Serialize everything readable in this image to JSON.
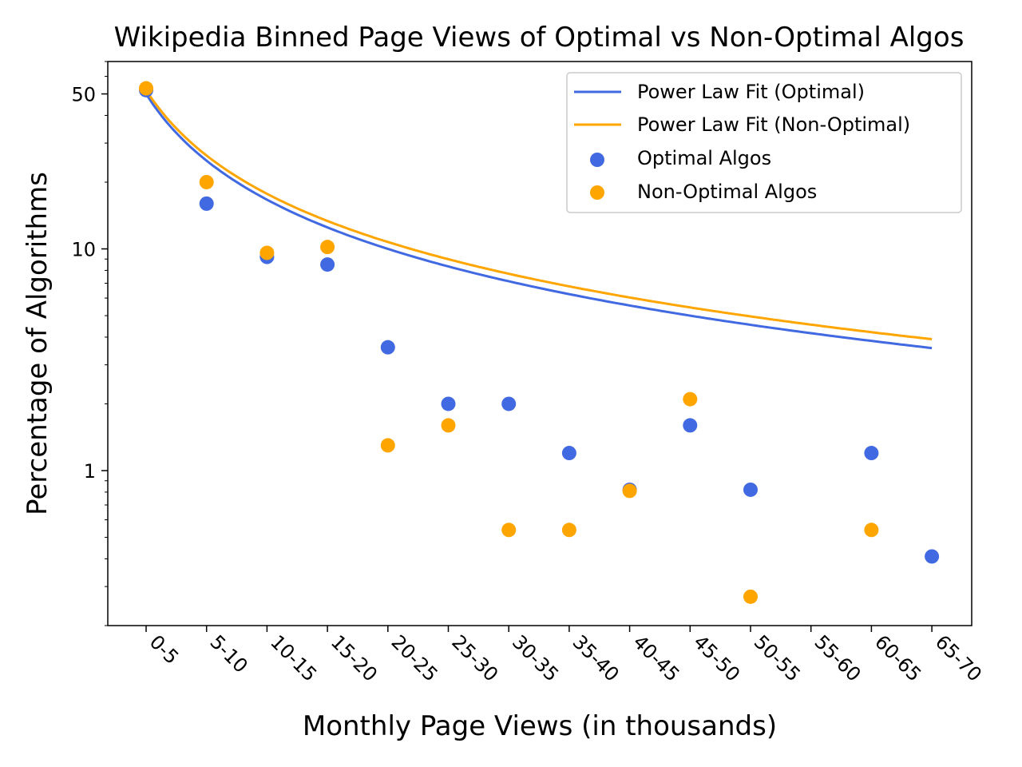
{
  "chart_data": {
    "type": "scatter",
    "title": "Wikipedia Binned Page Views of Optimal vs Non-Optimal Algos",
    "xlabel": "Monthly Page Views (in thousands)",
    "ylabel": "Percentage of Algorithms",
    "y_scale": "log",
    "ylim": [
      0.2,
      70
    ],
    "y_ticks": [
      {
        "value": 1,
        "label": "1"
      },
      {
        "value": 10,
        "label": "10"
      },
      {
        "value": 50,
        "label": "50"
      }
    ],
    "categories": [
      "0-5",
      "5-10",
      "10-15",
      "15-20",
      "20-25",
      "25-30",
      "30-35",
      "35-40",
      "40-45",
      "45-50",
      "50-55",
      "55-60",
      "60-65",
      "65-70"
    ],
    "grid": false,
    "legend_position": "top-right",
    "series": [
      {
        "name": "Optimal Algos",
        "kind": "scatter",
        "color": "#4169E1",
        "values": [
          52,
          16,
          9.2,
          8.5,
          3.6,
          2.0,
          2.0,
          1.2,
          0.82,
          1.6,
          0.82,
          null,
          1.2,
          0.41
        ]
      },
      {
        "name": "Non-Optimal Algos",
        "kind": "scatter",
        "color": "#FFA500",
        "values": [
          53,
          20,
          9.6,
          10.2,
          1.3,
          1.6,
          0.54,
          0.54,
          0.81,
          2.1,
          0.27,
          null,
          0.54,
          null
        ]
      },
      {
        "name": "Power Law Fit (Optimal)",
        "kind": "line",
        "color": "#4169E1",
        "fit": {
          "a": 50,
          "b": -1.0
        }
      },
      {
        "name": "Power Law Fit (Non-Optimal)",
        "kind": "line",
        "color": "#FFA500",
        "fit": {
          "a": 52,
          "b": -0.98
        }
      }
    ]
  }
}
